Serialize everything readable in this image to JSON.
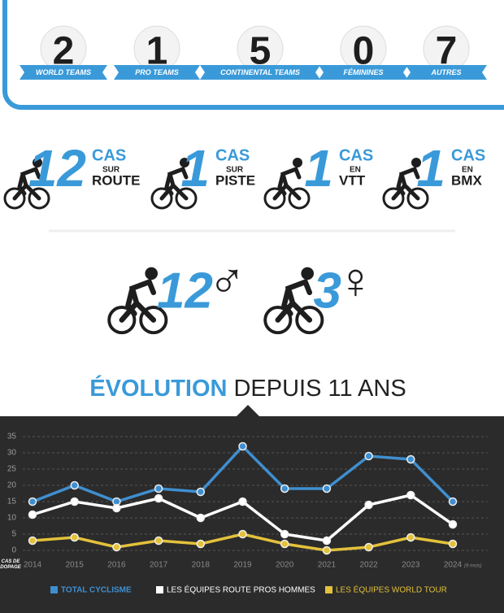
{
  "teams": [
    {
      "value": 2,
      "label": "WORLD TEAMS"
    },
    {
      "value": 1,
      "label": "PRO TEAMS"
    },
    {
      "value": 5,
      "label": "CONTINENTAL TEAMS"
    },
    {
      "value": 0,
      "label": "FÉMININES"
    },
    {
      "value": 7,
      "label": "AUTRES"
    }
  ],
  "cases": [
    {
      "value": 12,
      "word": "CAS",
      "prep": "SUR",
      "discipline": "ROUTE"
    },
    {
      "value": 1,
      "word": "CAS",
      "prep": "SUR",
      "discipline": "PISTE"
    },
    {
      "value": 1,
      "word": "CAS",
      "prep": "EN",
      "discipline": "VTT"
    },
    {
      "value": 1,
      "word": "CAS",
      "prep": "EN",
      "discipline": "BMX"
    }
  ],
  "gender": [
    {
      "value": 12,
      "symbol": "♂"
    },
    {
      "value": 3,
      "symbol": "♀"
    }
  ],
  "chart_data": {
    "type": "line",
    "title_highlight": "ÉVOLUTION",
    "title": "DEPUIS 11 ANS",
    "y_label": "CAS DE DOPAGE",
    "categories": [
      "2014",
      "2015",
      "2016",
      "2017",
      "2018",
      "2019",
      "2020",
      "2021",
      "2022",
      "2023",
      "2024"
    ],
    "last_category_note": "(9 mois)",
    "series": [
      {
        "name": "TOTAL CYCLISME",
        "color": "#3f8fd0",
        "values": [
          15,
          20,
          15,
          19,
          18,
          32,
          19,
          19,
          29,
          28,
          15
        ]
      },
      {
        "name": "LES ÉQUIPES ROUTE PROS HOMMES",
        "color": "#ffffff",
        "values": [
          11,
          15,
          13,
          16,
          10,
          15,
          5,
          3,
          14,
          17,
          8
        ]
      },
      {
        "name": "LES ÉQUIPES WORLD TOUR",
        "color": "#e3c13b",
        "values": [
          3,
          4,
          1,
          3,
          2,
          5,
          2,
          0,
          1,
          4,
          2
        ]
      }
    ],
    "ylim": [
      0,
      35
    ],
    "yticks": [
      0,
      5,
      10,
      15,
      20,
      25,
      30,
      35
    ],
    "grid": true
  }
}
